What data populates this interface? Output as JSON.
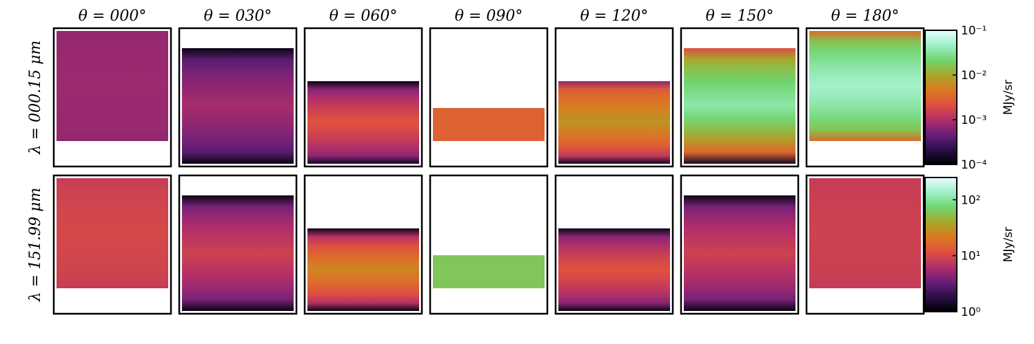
{
  "chart_data": {
    "type": "heatmap",
    "columns": [
      "θ = 000°",
      "θ = 030°",
      "θ = 060°",
      "θ = 090°",
      "θ = 120°",
      "θ = 150°",
      "θ = 180°"
    ],
    "rows": [
      {
        "label": "λ = 000.15 μm",
        "colorbar": {
          "unit": "MJy/sr",
          "scale": "log",
          "range": [
            0.0001,
            0.1
          ],
          "ticks": [
            "10⁻¹",
            "10⁻²",
            "10⁻³",
            "10⁻⁴"
          ],
          "tick_values": [
            0.1,
            0.01,
            0.001,
            0.0001
          ]
        },
        "panels": [
          {
            "top_value": 0.0007,
            "center_value": 0.0008,
            "bottom_value": 0.0007,
            "visible_extent": 1.0
          },
          {
            "top_value": 0.00012,
            "center_value": 0.0009,
            "bottom_value": 0.00012,
            "visible_extent": 0.87
          },
          {
            "top_value": 0.00012,
            "center_value": 0.0022,
            "bottom_value": 0.00015,
            "visible_extent": 0.62
          },
          {
            "top_value": 0.003,
            "center_value": 0.003,
            "bottom_value": 0.003,
            "visible_extent": 0.3
          },
          {
            "top_value": 0.0007,
            "center_value": 0.007,
            "bottom_value": 0.00015,
            "visible_extent": 0.62
          },
          {
            "top_value": 0.002,
            "center_value": 0.035,
            "bottom_value": 0.00015,
            "visible_extent": 0.87
          },
          {
            "top_value": 0.0035,
            "center_value": 0.05,
            "bottom_value": 0.0035,
            "visible_extent": 1.0
          }
        ]
      },
      {
        "label": "λ = 151.99 μm",
        "colorbar": {
          "unit": "MJy/sr",
          "scale": "log",
          "range": [
            1,
            250
          ],
          "ticks": [
            "10²",
            "10¹",
            "10⁰"
          ],
          "tick_values": [
            100,
            10,
            1
          ]
        },
        "panels": [
          {
            "top_value": 8,
            "center_value": 10,
            "bottom_value": 8,
            "visible_extent": 1.0
          },
          {
            "top_value": 1.2,
            "center_value": 9,
            "bottom_value": 1.2,
            "visible_extent": 0.87
          },
          {
            "top_value": 1.2,
            "center_value": 25,
            "bottom_value": 1.2,
            "visible_extent": 0.62
          },
          {
            "top_value": 60,
            "center_value": 60,
            "bottom_value": 60,
            "visible_extent": 0.3
          },
          {
            "top_value": 1.2,
            "center_value": 12,
            "bottom_value": 1.2,
            "visible_extent": 0.62
          },
          {
            "top_value": 1.2,
            "center_value": 9,
            "bottom_value": 1.2,
            "visible_extent": 0.87
          },
          {
            "top_value": 8,
            "center_value": 9,
            "bottom_value": 8,
            "visible_extent": 1.0
          }
        ]
      }
    ],
    "colormap": {
      "name": "cubehelix-like",
      "stops": [
        "#000000",
        "#2a0f4a",
        "#6b1f7a",
        "#b02e6a",
        "#e0503f",
        "#d97a20",
        "#a7a82a",
        "#6fd46e",
        "#9ff0c8",
        "#e8fdff"
      ]
    }
  }
}
